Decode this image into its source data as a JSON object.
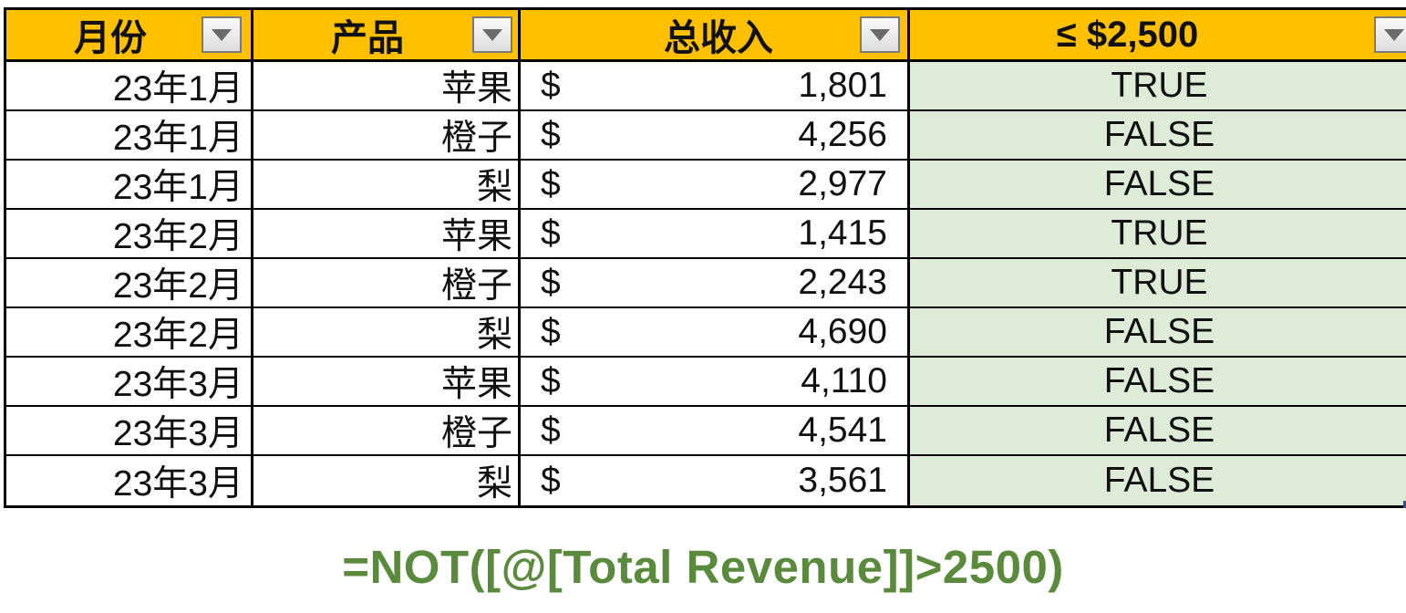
{
  "table": {
    "headers": {
      "month": "月份",
      "product": "产品",
      "revenue": "总收入",
      "flag": "≤ $2,500"
    },
    "currency_symbol": "$",
    "rows": [
      {
        "month": "23年1月",
        "product": "苹果",
        "revenue": "1,801",
        "flag": "TRUE"
      },
      {
        "month": "23年1月",
        "product": "橙子",
        "revenue": "4,256",
        "flag": "FALSE"
      },
      {
        "month": "23年1月",
        "product": "梨",
        "revenue": "2,977",
        "flag": "FALSE"
      },
      {
        "month": "23年2月",
        "product": "苹果",
        "revenue": "1,415",
        "flag": "TRUE"
      },
      {
        "month": "23年2月",
        "product": "橙子",
        "revenue": "2,243",
        "flag": "TRUE"
      },
      {
        "month": "23年2月",
        "product": "梨",
        "revenue": "4,690",
        "flag": "FALSE"
      },
      {
        "month": "23年3月",
        "product": "苹果",
        "revenue": "4,110",
        "flag": "FALSE"
      },
      {
        "month": "23年3月",
        "product": "橙子",
        "revenue": "4,541",
        "flag": "FALSE"
      },
      {
        "month": "23年3月",
        "product": "梨",
        "revenue": "3,561",
        "flag": "FALSE"
      }
    ]
  },
  "formula": "=NOT([@[Total Revenue]]>2500)",
  "colors": {
    "header_bg": "#FFC000",
    "flag_cell_bg": "#DDEBD7",
    "formula_text": "#5A8A3C"
  },
  "icons": {
    "filter": "dropdown-arrow-icon"
  }
}
